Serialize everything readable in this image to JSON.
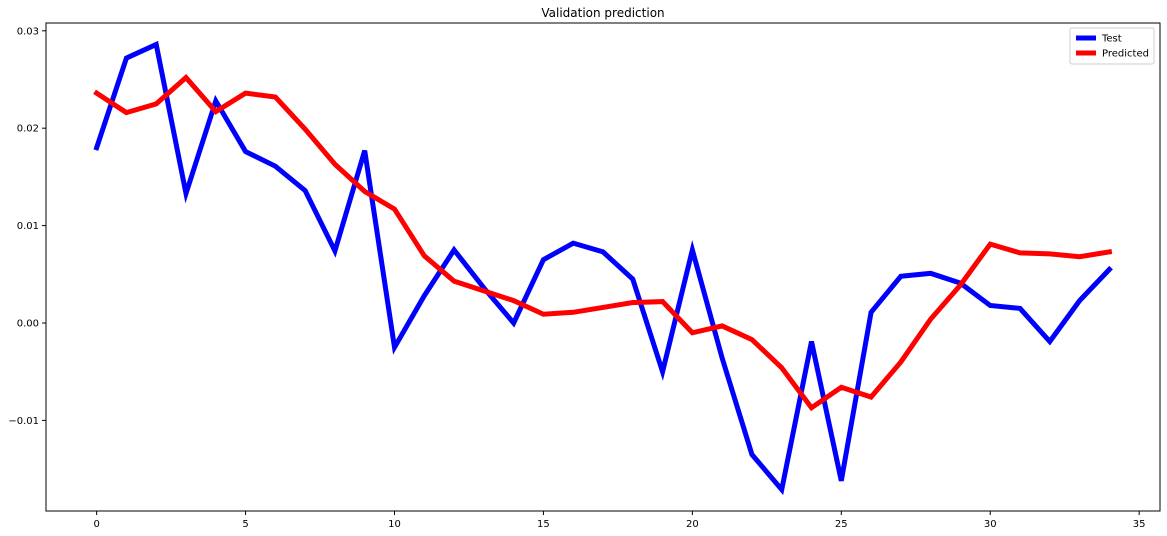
{
  "chart_data": {
    "type": "line",
    "title": "Validation prediction",
    "xlabel": "",
    "ylabel": "",
    "xlim": [
      -1.7,
      35.7
    ],
    "ylim": [
      -0.0193,
      0.0308
    ],
    "xticks": [
      0,
      5,
      10,
      15,
      20,
      25,
      30,
      35
    ],
    "xtick_labels": [
      "0",
      "5",
      "10",
      "15",
      "20",
      "25",
      "30",
      "35"
    ],
    "yticks": [
      -0.01,
      0.0,
      0.01,
      0.02,
      0.03
    ],
    "ytick_labels": [
      "−0.01",
      "0.00",
      "0.01",
      "0.02",
      "0.03"
    ],
    "grid": false,
    "legend_position": "top-right",
    "x": [
      0,
      1,
      2,
      3,
      4,
      5,
      6,
      7,
      8,
      9,
      10,
      11,
      12,
      13,
      14,
      15,
      16,
      17,
      18,
      19,
      20,
      21,
      22,
      23,
      24,
      25,
      26,
      27,
      28,
      29,
      30,
      31,
      32,
      33,
      34
    ],
    "series": [
      {
        "name": "Test",
        "color": "#0000ff",
        "values": [
          0.018,
          0.0272,
          0.0286,
          0.0133,
          0.0228,
          0.0176,
          0.0161,
          0.0136,
          0.0074,
          0.0177,
          -0.0025,
          0.0028,
          0.0075,
          0.0036,
          0.0,
          0.0065,
          0.0082,
          0.0073,
          0.0045,
          -0.005,
          0.0075,
          -0.0036,
          -0.0135,
          -0.0171,
          -0.0019,
          -0.0162,
          0.0011,
          0.0048,
          0.0051,
          0.0041,
          0.0018,
          0.0015,
          -0.0019,
          0.0023,
          0.0055
        ]
      },
      {
        "name": "Predicted",
        "color": "#ff0000",
        "values": [
          0.0236,
          0.0216,
          0.0225,
          0.0252,
          0.0217,
          0.0236,
          0.0232,
          0.0199,
          0.0163,
          0.0135,
          0.0117,
          0.0069,
          0.0043,
          0.0033,
          0.0023,
          0.0009,
          0.0011,
          0.0016,
          0.0021,
          0.0022,
          -0.001,
          -0.0003,
          -0.0017,
          -0.0046,
          -0.0087,
          -0.0066,
          -0.0076,
          -0.004,
          0.0004,
          0.0039,
          0.0081,
          0.0072,
          0.0071,
          0.0068,
          0.0073
        ]
      }
    ]
  }
}
